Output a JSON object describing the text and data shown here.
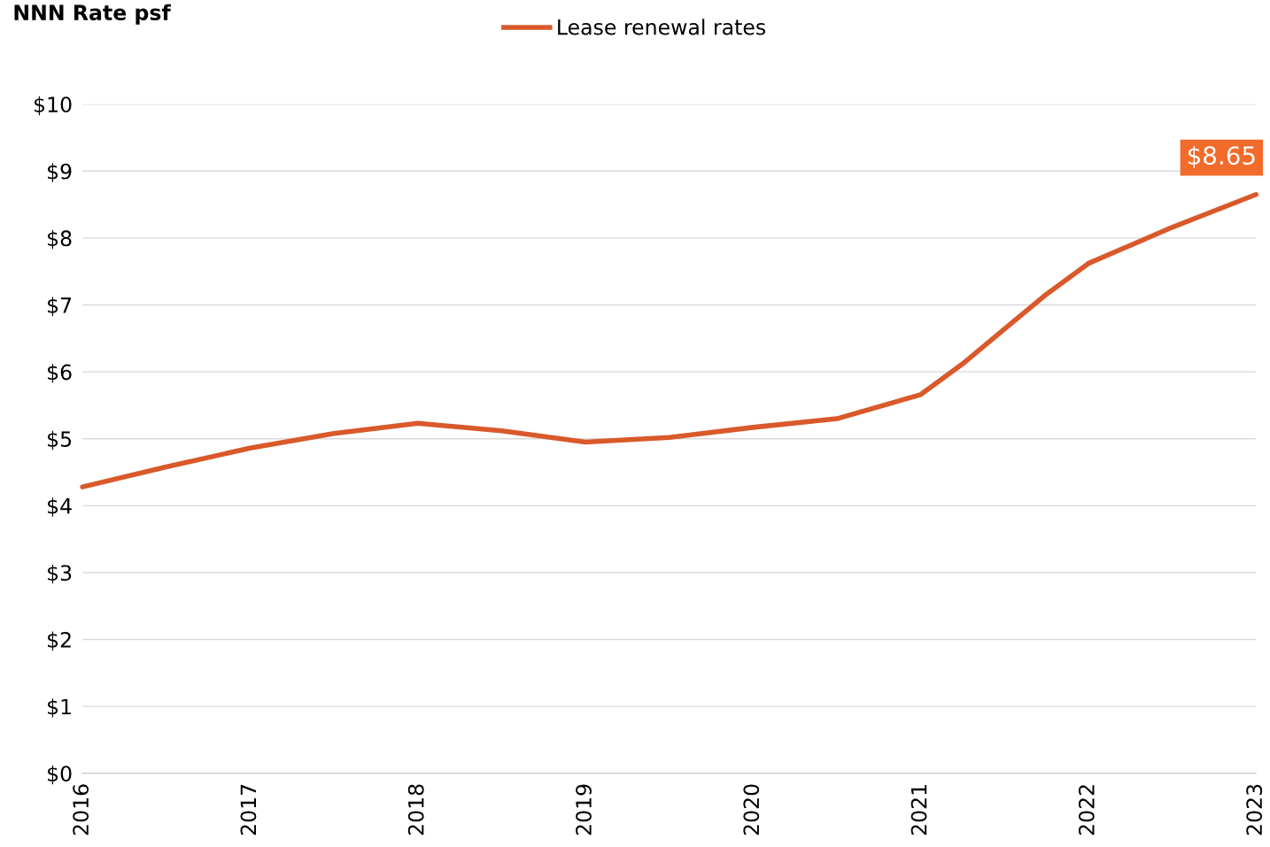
{
  "chart_data": {
    "type": "line",
    "title": "NNN Rate psf",
    "x": [
      2016,
      2016.5,
      2017,
      2017.5,
      2018,
      2018.5,
      2019,
      2019.5,
      2020,
      2020.5,
      2021,
      2021.25,
      2021.5,
      2021.75,
      2022,
      2022.5,
      2023
    ],
    "series": [
      {
        "name": "Lease renewal rates",
        "color": "#d9592a",
        "values": [
          4.28,
          4.58,
          4.86,
          5.08,
          5.23,
          5.12,
          4.95,
          5.02,
          5.17,
          5.3,
          5.66,
          6.12,
          6.64,
          7.16,
          7.62,
          8.16,
          8.65
        ]
      }
    ],
    "xlim": [
      2016,
      2023
    ],
    "xticks": [
      2016,
      2017,
      2018,
      2019,
      2020,
      2021,
      2022,
      2023
    ],
    "ylim": [
      0,
      10
    ],
    "yticks": [
      {
        "value": 0,
        "label": "$0"
      },
      {
        "value": 1,
        "label": "$1"
      },
      {
        "value": 2,
        "label": "$2"
      },
      {
        "value": 3,
        "label": "$3"
      },
      {
        "value": 4,
        "label": "$4"
      },
      {
        "value": 5,
        "label": "$5"
      },
      {
        "value": 6,
        "label": "$6"
      },
      {
        "value": 7,
        "label": "$7"
      },
      {
        "value": 8,
        "label": "$8"
      },
      {
        "value": 9,
        "label": "$9"
      },
      {
        "value": 10,
        "label": "$10"
      }
    ],
    "annotations": [
      {
        "text": "$8.65",
        "x": 2023,
        "y": 8.65
      }
    ],
    "grid": "y",
    "legend": "top",
    "marker": "none",
    "line_style": "solid"
  }
}
